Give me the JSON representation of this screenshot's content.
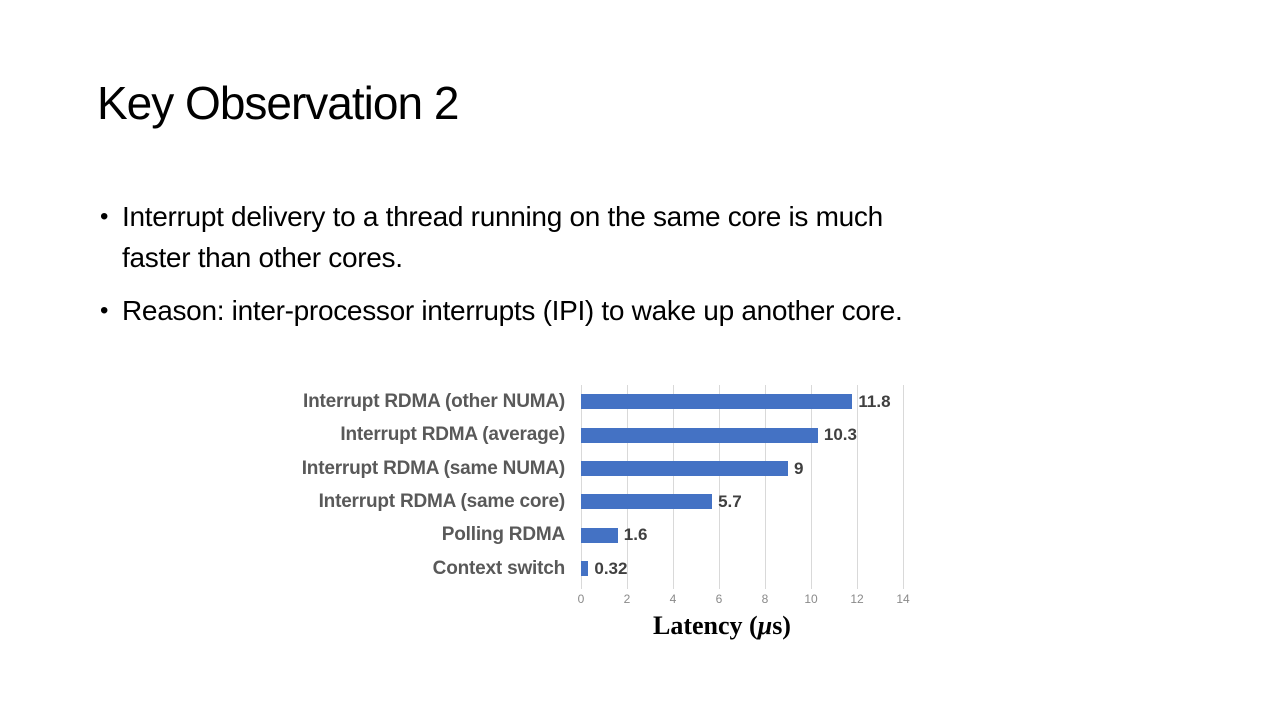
{
  "slide": {
    "title": "Key Observation 2",
    "bullets": [
      [
        "Interrupt delivery to a thread running on the same core is much",
        "faster than other cores."
      ],
      [
        "Reason: inter-processor interrupts (IPI) to wake up another core."
      ]
    ]
  },
  "chart_data": {
    "type": "bar",
    "orientation": "horizontal",
    "categories": [
      "Interrupt RDMA (other NUMA)",
      "Interrupt RDMA (average)",
      "Interrupt RDMA (same NUMA)",
      "Interrupt RDMA (same core)",
      "Polling RDMA",
      "Context switch"
    ],
    "values": [
      11.8,
      10.3,
      9,
      5.7,
      1.6,
      0.32
    ],
    "value_labels": [
      "11.8",
      "10.3",
      "9",
      "5.7",
      "1.6",
      "0.32"
    ],
    "xlabel_parts": [
      "Latency (",
      "μ",
      "s)"
    ],
    "xlim": [
      0,
      14
    ],
    "xticks": [
      0,
      2,
      4,
      6,
      8,
      10,
      12,
      14
    ],
    "grid": "vertical",
    "legend": "none",
    "colors": {
      "bar": "#4472C4",
      "category_label": "#595959",
      "value_label": "#404040",
      "tick_label": "#8A8A8A",
      "gridline": "#D9D9D9"
    }
  }
}
